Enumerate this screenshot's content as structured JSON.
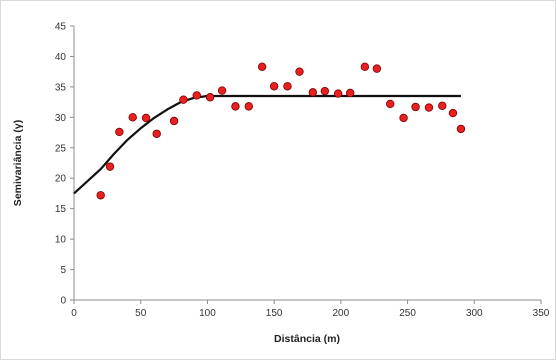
{
  "chart_data": {
    "type": "scatter",
    "title": "",
    "xlabel": "Distância (m)",
    "ylabel": "Semivariância (γ)",
    "xlim": [
      0,
      350
    ],
    "ylim": [
      0,
      45
    ],
    "x_ticks": [
      "0",
      "50",
      "100",
      "150",
      "200",
      "250",
      "300",
      "350"
    ],
    "y_ticks": [
      "0",
      "5",
      "10",
      "15",
      "20",
      "25",
      "30",
      "35",
      "40",
      "45"
    ],
    "grid": false,
    "legend": "none",
    "series": [
      {
        "kind": "points",
        "color": "#e8201f",
        "outline": "#7a0000",
        "points": [
          [
            20,
            17.2
          ],
          [
            27,
            21.9
          ],
          [
            34,
            27.6
          ],
          [
            44,
            30.0
          ],
          [
            54,
            29.9
          ],
          [
            62,
            27.3
          ],
          [
            75,
            29.4
          ],
          [
            82,
            32.9
          ],
          [
            92,
            33.6
          ],
          [
            102,
            33.3
          ],
          [
            111,
            34.4
          ],
          [
            121,
            31.8
          ],
          [
            131,
            31.8
          ],
          [
            141,
            38.3
          ],
          [
            150,
            35.1
          ],
          [
            160,
            35.1
          ],
          [
            169,
            37.5
          ],
          [
            179,
            34.1
          ],
          [
            188,
            34.3
          ],
          [
            198,
            33.9
          ],
          [
            207,
            34.0
          ],
          [
            218,
            38.3
          ],
          [
            227,
            38.0
          ],
          [
            237,
            32.2
          ],
          [
            247,
            29.9
          ],
          [
            256,
            31.7
          ],
          [
            266,
            31.6
          ],
          [
            276,
            31.9
          ],
          [
            284,
            30.7
          ],
          [
            290,
            28.1
          ]
        ]
      },
      {
        "kind": "line",
        "color": "#111111",
        "points": [
          [
            0,
            17.5
          ],
          [
            10,
            19.5
          ],
          [
            20,
            21.5
          ],
          [
            30,
            24.0
          ],
          [
            40,
            26.3
          ],
          [
            50,
            28.2
          ],
          [
            60,
            29.9
          ],
          [
            70,
            31.3
          ],
          [
            80,
            32.5
          ],
          [
            90,
            33.2
          ],
          [
            100,
            33.5
          ],
          [
            150,
            33.5
          ],
          [
            200,
            33.5
          ],
          [
            250,
            33.5
          ],
          [
            290,
            33.5
          ]
        ]
      }
    ]
  }
}
